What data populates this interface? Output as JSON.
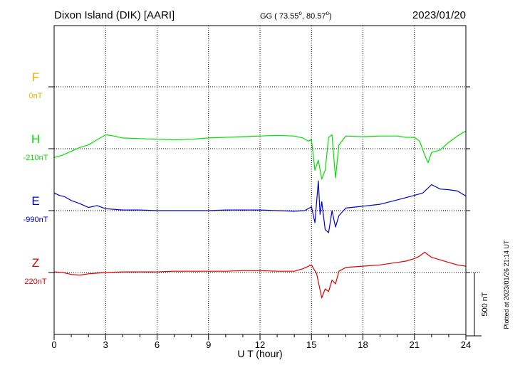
{
  "header": {
    "station": "Dixon Island (DIK)  [AARI]",
    "coords_prefix": "GG ( 73.55",
    "coords_mid": ",  80.57",
    "coords_suffix": ")",
    "degree_mark": "o",
    "date": "2023/01/20"
  },
  "footer": {
    "plotted": "Plotted at 2023/01/26 21:14 UT"
  },
  "colors": {
    "F": "#f0b000",
    "H": "#00e000",
    "E": "#0000d0",
    "Z": "#e00000",
    "axis": "#000000"
  },
  "chart_data": {
    "type": "line",
    "xlabel": "U T (hour)",
    "xlim": [
      0,
      24
    ],
    "x_ticks": [
      "0",
      "3",
      "6",
      "9",
      "12",
      "15",
      "18",
      "21",
      "24"
    ],
    "grid": "dotted, every 3 hours and at each component baseline",
    "scale_bar": {
      "label": "500 nT",
      "value_nT": 500
    },
    "series": [
      {
        "name": "F",
        "baseline_label": "0nT",
        "baseline_nT": 0,
        "x": [],
        "y": []
      },
      {
        "name": "H",
        "baseline_label": "-210nT",
        "baseline_nT": -210,
        "x": [
          0,
          0.5,
          1,
          1.5,
          2,
          2.5,
          3,
          3.5,
          4,
          5,
          6,
          7,
          8,
          9,
          10,
          11,
          12,
          13,
          14,
          14.5,
          14.8,
          15,
          15.2,
          15.4,
          15.6,
          15.8,
          16,
          16.2,
          16.4,
          16.6,
          17,
          18,
          19,
          20,
          20.5,
          21,
          21.3,
          21.6,
          21.8,
          22,
          22.5,
          23,
          23.5,
          24
        ],
        "y": [
          -280,
          -260,
          -230,
          -200,
          -180,
          -140,
          -100,
          -110,
          -125,
          -130,
          -135,
          -140,
          -135,
          -125,
          -120,
          -115,
          -110,
          -105,
          -110,
          -125,
          -150,
          -140,
          -380,
          -300,
          -450,
          -380,
          -120,
          -100,
          -440,
          -180,
          -110,
          -115,
          -110,
          -110,
          -120,
          -120,
          -150,
          -260,
          -320,
          -240,
          -220,
          -160,
          -110,
          -70
        ]
      },
      {
        "name": "E",
        "baseline_label": "-990nT",
        "baseline_nT": -990,
        "x": [
          0,
          0.3,
          0.6,
          1,
          1.5,
          2,
          2.5,
          3,
          4,
          5,
          6,
          7,
          8,
          9,
          10,
          11,
          12,
          13,
          14,
          14.6,
          15,
          15.2,
          15.4,
          15.5,
          15.6,
          15.8,
          16,
          16.2,
          16.4,
          16.6,
          17,
          18,
          19,
          20,
          21,
          21.5,
          22,
          22.5,
          23,
          23.5,
          24
        ],
        "y": [
          -850,
          -870,
          -880,
          -910,
          -935,
          -965,
          -950,
          -975,
          -985,
          -985,
          -990,
          -990,
          -990,
          -990,
          -985,
          -985,
          -985,
          -990,
          -995,
          -990,
          -960,
          -1085,
          -755,
          -1020,
          -920,
          -1140,
          -1165,
          -990,
          -1120,
          -1030,
          -970,
          -955,
          -940,
          -905,
          -870,
          -850,
          -785,
          -820,
          -825,
          -835,
          -875
        ]
      },
      {
        "name": "Z",
        "baseline_label": "220nT",
        "baseline_nT": 220,
        "x": [
          0,
          0.5,
          1,
          1.5,
          2,
          2.5,
          3,
          4,
          5,
          6,
          7,
          8,
          9,
          10,
          11,
          12,
          13,
          14,
          14.5,
          15,
          15.3,
          15.6,
          15.8,
          16,
          16.2,
          16.4,
          16.6,
          17,
          18,
          19,
          20,
          20.5,
          21,
          21.3,
          21.6,
          22,
          22.5,
          23,
          23.5,
          24
        ],
        "y": [
          225,
          220,
          205,
          200,
          210,
          215,
          220,
          225,
          225,
          225,
          230,
          230,
          230,
          230,
          235,
          235,
          230,
          230,
          250,
          280,
          210,
          20,
          90,
          70,
          160,
          130,
          230,
          260,
          270,
          280,
          300,
          310,
          330,
          350,
          380,
          340,
          320,
          300,
          280,
          270
        ]
      }
    ]
  }
}
